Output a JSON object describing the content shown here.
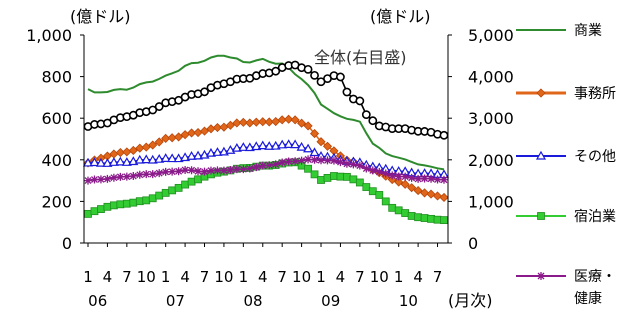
{
  "chart_data": {
    "type": "line",
    "unit_left": "(億ドル)",
    "unit_right": "(億ドル)",
    "x_unit": "(月次)",
    "month_tick_labels": [
      "1",
      "4",
      "7",
      "10",
      "1",
      "4",
      "7",
      "10",
      "1",
      "4",
      "7",
      "10",
      "1",
      "4",
      "7",
      "10",
      "1",
      "4",
      "7"
    ],
    "year_labels": [
      "06",
      "07",
      "08",
      "09",
      "10"
    ],
    "x_range": [
      "2006-01",
      "2010-08"
    ],
    "y_left": {
      "min": 0,
      "max": 1000,
      "ticks": [
        "0",
        "200",
        "400",
        "600",
        "800",
        "1,000"
      ]
    },
    "y_right": {
      "min": 0,
      "max": 5000,
      "ticks": [
        "0",
        "1,000",
        "2,000",
        "3,000",
        "4,000",
        "5,000"
      ]
    },
    "annotation": "全体(右目盛)",
    "grid": false,
    "legend_position": "right",
    "series": [
      {
        "name": "商業",
        "axis": "left",
        "color": "#2e8b2e",
        "marker": "none",
        "anchors": [
          [
            0,
            740
          ],
          [
            1,
            720
          ],
          [
            3,
            730
          ],
          [
            6,
            740
          ],
          [
            9,
            770
          ],
          [
            12,
            800
          ],
          [
            15,
            850
          ],
          [
            18,
            880
          ],
          [
            21,
            905
          ],
          [
            24,
            870
          ],
          [
            27,
            880
          ],
          [
            30,
            860
          ],
          [
            31,
            840
          ],
          [
            33,
            790
          ],
          [
            35,
            720
          ],
          [
            36,
            670
          ],
          [
            38,
            620
          ],
          [
            40,
            600
          ],
          [
            42,
            580
          ],
          [
            44,
            480
          ],
          [
            46,
            430
          ],
          [
            49,
            400
          ],
          [
            51,
            380
          ],
          [
            53,
            365
          ],
          [
            55,
            355
          ]
        ]
      },
      {
        "name": "事務所",
        "axis": "left",
        "color": "#e0661a",
        "marker": "diamond",
        "anchors": [
          [
            0,
            385
          ],
          [
            3,
            420
          ],
          [
            6,
            440
          ],
          [
            9,
            460
          ],
          [
            12,
            500
          ],
          [
            15,
            520
          ],
          [
            18,
            540
          ],
          [
            21,
            560
          ],
          [
            24,
            580
          ],
          [
            27,
            580
          ],
          [
            30,
            590
          ],
          [
            32,
            595
          ],
          [
            34,
            560
          ],
          [
            36,
            490
          ],
          [
            38,
            440
          ],
          [
            40,
            400
          ],
          [
            43,
            370
          ],
          [
            46,
            320
          ],
          [
            49,
            280
          ],
          [
            52,
            240
          ],
          [
            55,
            220
          ]
        ]
      },
      {
        "name": "その他",
        "axis": "left",
        "color": "#1a1adb",
        "marker": "triangle",
        "anchors": [
          [
            0,
            385
          ],
          [
            3,
            385
          ],
          [
            6,
            390
          ],
          [
            9,
            400
          ],
          [
            12,
            405
          ],
          [
            15,
            410
          ],
          [
            18,
            425
          ],
          [
            21,
            440
          ],
          [
            24,
            460
          ],
          [
            27,
            465
          ],
          [
            30,
            470
          ],
          [
            32,
            475
          ],
          [
            34,
            450
          ],
          [
            36,
            420
          ],
          [
            39,
            400
          ],
          [
            42,
            385
          ],
          [
            45,
            360
          ],
          [
            48,
            345
          ],
          [
            51,
            335
          ],
          [
            55,
            330
          ]
        ]
      },
      {
        "name": "宿泊業",
        "axis": "left",
        "color": "#33cc33",
        "marker": "square",
        "anchors": [
          [
            0,
            140
          ],
          [
            3,
            175
          ],
          [
            6,
            190
          ],
          [
            9,
            205
          ],
          [
            12,
            240
          ],
          [
            15,
            280
          ],
          [
            18,
            320
          ],
          [
            21,
            345
          ],
          [
            24,
            360
          ],
          [
            27,
            370
          ],
          [
            30,
            380
          ],
          [
            32,
            390
          ],
          [
            34,
            355
          ],
          [
            36,
            305
          ],
          [
            38,
            320
          ],
          [
            40,
            320
          ],
          [
            42,
            290
          ],
          [
            45,
            230
          ],
          [
            47,
            170
          ],
          [
            50,
            130
          ],
          [
            53,
            115
          ],
          [
            55,
            110
          ]
        ]
      },
      {
        "name": "医療・健康",
        "axis": "left",
        "color": "#8b1a8b",
        "marker": "star",
        "anchors": [
          [
            0,
            300
          ],
          [
            3,
            310
          ],
          [
            6,
            320
          ],
          [
            9,
            330
          ],
          [
            12,
            340
          ],
          [
            15,
            350
          ],
          [
            18,
            345
          ],
          [
            21,
            350
          ],
          [
            24,
            355
          ],
          [
            27,
            370
          ],
          [
            30,
            385
          ],
          [
            32,
            395
          ],
          [
            34,
            400
          ],
          [
            36,
            400
          ],
          [
            39,
            390
          ],
          [
            42,
            370
          ],
          [
            45,
            340
          ],
          [
            48,
            320
          ],
          [
            51,
            310
          ],
          [
            55,
            305
          ]
        ]
      },
      {
        "name": "全体",
        "axis": "right",
        "color": "#000000",
        "marker": "circle",
        "anchors": [
          [
            0,
            2800
          ],
          [
            3,
            2900
          ],
          [
            6,
            3050
          ],
          [
            9,
            3150
          ],
          [
            12,
            3350
          ],
          [
            15,
            3500
          ],
          [
            18,
            3650
          ],
          [
            21,
            3850
          ],
          [
            24,
            3950
          ],
          [
            27,
            4050
          ],
          [
            30,
            4200
          ],
          [
            32,
            4300
          ],
          [
            34,
            4150
          ],
          [
            36,
            3900
          ],
          [
            38,
            4000
          ],
          [
            39,
            4000
          ],
          [
            40,
            3650
          ],
          [
            41,
            3450
          ],
          [
            42,
            3400
          ],
          [
            43,
            3100
          ],
          [
            45,
            2800
          ],
          [
            48,
            2750
          ],
          [
            51,
            2700
          ],
          [
            53,
            2650
          ],
          [
            55,
            2600
          ]
        ]
      }
    ]
  },
  "legend": {
    "items": [
      {
        "label_lines": [
          "商業"
        ],
        "color": "#2e8b2e",
        "marker": "none"
      },
      {
        "label_lines": [
          "事務所"
        ],
        "color": "#e0661a",
        "marker": "diamond"
      },
      {
        "label_lines": [
          "その他"
        ],
        "color": "#1a1adb",
        "marker": "triangle"
      },
      {
        "label_lines": [
          "宿泊業"
        ],
        "color": "#33cc33",
        "marker": "square"
      },
      {
        "label_lines": [
          "医療・",
          "健康"
        ],
        "color": "#8b1a8b",
        "marker": "star"
      }
    ]
  }
}
